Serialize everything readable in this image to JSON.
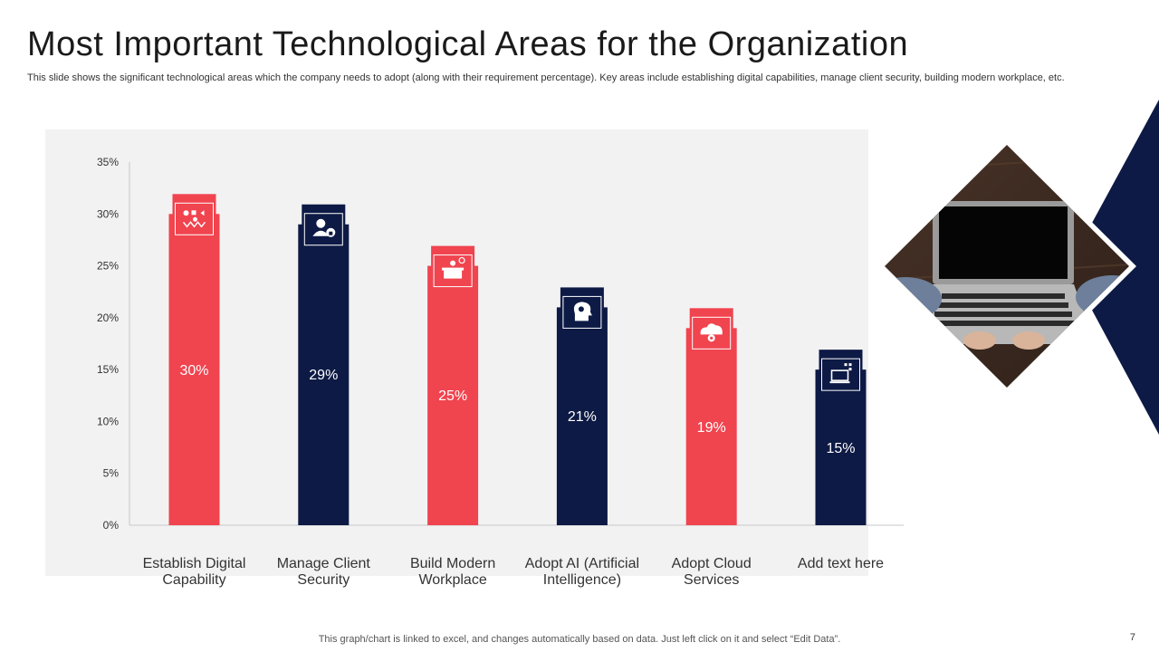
{
  "slide": {
    "title": "Most Important Technological Areas for the Organization",
    "subtitle": "This slide shows the significant technological areas which the company needs to adopt (along with their requirement percentage). Key areas include establishing digital capabilities, manage client security, building modern workplace, etc.",
    "footer_note": "This graph/chart is linked to excel,  and changes automatically based on data. Just left click on it and select “Edit Data”.",
    "page_number": "7"
  },
  "colors": {
    "red": "#f0444f",
    "navy": "#0d1a45",
    "panel": "#f2f2f2",
    "accent_navy": "#0d1a45"
  },
  "chart_data": {
    "type": "bar",
    "title": "",
    "xlabel": "",
    "ylabel": "",
    "ylim": [
      0,
      35
    ],
    "yticks": [
      "0%",
      "5%",
      "10%",
      "15%",
      "20%",
      "25%",
      "30%",
      "35%"
    ],
    "ytick_values": [
      0,
      5,
      10,
      15,
      20,
      25,
      30,
      35
    ],
    "grid": false,
    "categories": [
      [
        "Establish Digital",
        "Capability"
      ],
      [
        "Manage Client",
        "Security"
      ],
      [
        "Build Modern",
        "Workplace"
      ],
      [
        "Adopt AI (Artificial",
        "Intelligence)"
      ],
      [
        "Adopt Cloud",
        "Services"
      ],
      [
        "Add text here"
      ]
    ],
    "values": [
      30,
      29,
      25,
      21,
      19,
      15
    ],
    "data_labels": [
      "30%",
      "29%",
      "25%",
      "21%",
      "19%",
      "15%"
    ],
    "bar_colors": [
      "red",
      "navy",
      "red",
      "navy",
      "red",
      "navy"
    ],
    "icons": [
      "digital-network-icon",
      "user-lock-icon",
      "workplace-desk-icon",
      "ai-head-icon",
      "cloud-gear-icon",
      "computer-network-icon"
    ]
  },
  "photo": {
    "icon": "laptop-photo-icon"
  }
}
